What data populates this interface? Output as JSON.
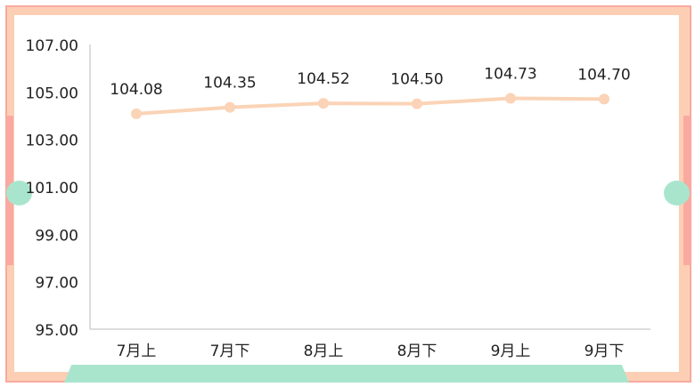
{
  "chart_data": {
    "type": "line",
    "categories": [
      "7月上",
      "7月下",
      "8月上",
      "8月下",
      "9月上",
      "9月下"
    ],
    "values": [
      104.08,
      104.35,
      104.52,
      104.5,
      104.73,
      104.7
    ],
    "data_labels": [
      "104.08",
      "104.35",
      "104.52",
      "104.50",
      "104.73",
      "104.70"
    ],
    "ylim": [
      95,
      107
    ],
    "yticks": [
      "95.00",
      "97.00",
      "99.00",
      "101.00",
      "103.00",
      "105.00",
      "107.00"
    ],
    "title": "",
    "xlabel": "",
    "ylabel": "",
    "grid": false,
    "colors": {
      "line": "#fbd3b6",
      "frame": "#fccfb4",
      "frame_edge": "#f9a9a0",
      "accent": "#a9e5cd"
    }
  }
}
